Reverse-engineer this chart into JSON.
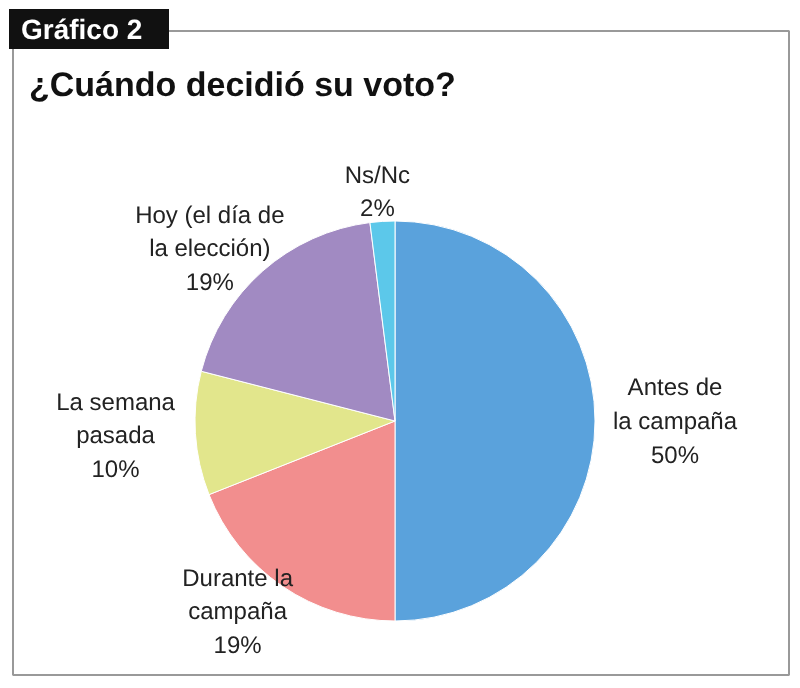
{
  "chart_data": {
    "type": "pie",
    "title": "¿Cuándo decidió su voto?",
    "annotations": [
      "Gráfico 2"
    ],
    "categories": [
      "Antes de\nla campaña",
      "Durante la\ncampaña",
      "La semana\npasada",
      "Hoy (el día de\nla elección)",
      "Ns/Nc"
    ],
    "values": [
      50,
      19,
      10,
      19,
      2
    ],
    "value_labels": [
      "50%",
      "19%",
      "10%",
      "19%",
      "2%"
    ],
    "colors": [
      "#5aa2dc",
      "#f28e8e",
      "#e2e68c",
      "#a18ac2",
      "#5cc8ea"
    ]
  }
}
